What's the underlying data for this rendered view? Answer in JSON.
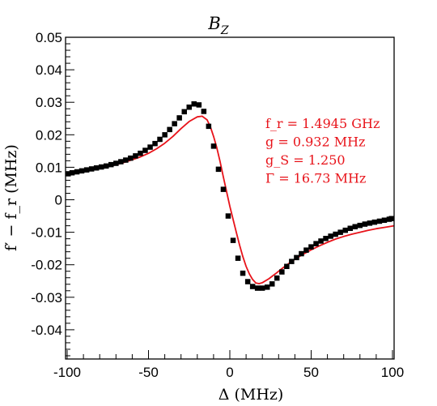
{
  "chart_data": {
    "type": "scatter",
    "title": "B_Z",
    "title_main": "B",
    "title_sub": "Z",
    "xlabel": "Δ (MHz)",
    "ylabel": "f′ − f_r (MHz)",
    "xlim": [
      -101,
      101
    ],
    "ylim": [
      -0.049,
      0.05
    ],
    "x_ticks": [
      -100,
      -50,
      0,
      50,
      100
    ],
    "x_tick_labels": [
      "-100",
      "-50",
      "0",
      "50",
      "100"
    ],
    "y_ticks": [
      0.05,
      0.04,
      0.03,
      0.02,
      0.01,
      0,
      -0.01,
      -0.02,
      -0.03,
      -0.04
    ],
    "y_tick_labels": [
      "0.05",
      "0.04",
      "0.03",
      "0.02",
      "0.01",
      "0",
      "-0.01",
      "-0.02",
      "-0.03",
      "-0.04"
    ],
    "grid": false,
    "colors": {
      "data": "#000000",
      "fit": "#e8131a"
    },
    "annotations": [
      "f_r = 1.4945 GHz",
      "g = 0.932 MHz",
      "g_S = 1.250",
      "Γ = 16.73 MHz"
    ],
    "series": [
      {
        "marker": "square",
        "x": [
          -100,
          -97,
          -94,
          -91,
          -88,
          -85,
          -82,
          -79,
          -76,
          -73,
          -70,
          -67,
          -64,
          -61,
          -58,
          -55,
          -52,
          -49,
          -46,
          -43,
          -40,
          -37,
          -34,
          -31,
          -28,
          -25,
          -22,
          -19,
          -16,
          -13,
          -10,
          -7,
          -4,
          -1,
          2,
          5,
          8,
          11,
          14,
          17,
          20,
          23,
          26,
          29,
          32,
          35,
          38,
          41,
          44,
          47,
          50,
          53,
          56,
          59,
          62,
          65,
          68,
          71,
          74,
          77,
          80,
          83,
          86,
          89,
          92,
          95,
          98,
          101
        ],
        "y": [
          0.008,
          0.0083,
          0.0086,
          0.0089,
          0.0092,
          0.0095,
          0.0098,
          0.0101,
          0.0104,
          0.0108,
          0.0112,
          0.0117,
          0.0122,
          0.0128,
          0.0135,
          0.0143,
          0.0152,
          0.0162,
          0.0173,
          0.0186,
          0.02,
          0.0216,
          0.0234,
          0.0252,
          0.0271,
          0.0285,
          0.0295,
          0.0292,
          0.0272,
          0.0226,
          0.0165,
          0.0094,
          0.0032,
          -0.005,
          -0.0125,
          -0.018,
          -0.0226,
          -0.0252,
          -0.0267,
          -0.0272,
          -0.0272,
          -0.0269,
          -0.0259,
          -0.0241,
          -0.0222,
          -0.0205,
          -0.019,
          -0.0178,
          -0.0166,
          -0.0155,
          -0.0145,
          -0.0135,
          -0.0127,
          -0.0119,
          -0.0112,
          -0.0106,
          -0.01,
          -0.0094,
          -0.0088,
          -0.0083,
          -0.0079,
          -0.0075,
          -0.0072,
          -0.0069,
          -0.0066,
          -0.0063,
          -0.006,
          -0.0058
        ]
      },
      {
        "type": "line",
        "x": [
          -101,
          -95,
          -90,
          -85,
          -80,
          -75,
          -70,
          -65,
          -60,
          -55,
          -50,
          -45,
          -40,
          -35,
          -30,
          -25,
          -20,
          -17,
          -14,
          -12,
          -10,
          -8,
          -6,
          -4,
          -2,
          0,
          2,
          4,
          6,
          8,
          10,
          12,
          14,
          16,
          18,
          20,
          24,
          28,
          32,
          36,
          40,
          45,
          50,
          55,
          60,
          65,
          70,
          75,
          80,
          85,
          90,
          95,
          101
        ],
        "y": [
          0.008,
          0.0084,
          0.0088,
          0.0092,
          0.0097,
          0.0102,
          0.0108,
          0.0115,
          0.0123,
          0.0132,
          0.0143,
          0.0157,
          0.0174,
          0.0195,
          0.0219,
          0.0241,
          0.0255,
          0.0257,
          0.0246,
          0.0225,
          0.0195,
          0.016,
          0.0118,
          0.007,
          0.0025,
          -0.002,
          -0.006,
          -0.01,
          -0.014,
          -0.0175,
          -0.0205,
          -0.0228,
          -0.0245,
          -0.0256,
          -0.0258,
          -0.0255,
          -0.0243,
          -0.0228,
          -0.0212,
          -0.0197,
          -0.0183,
          -0.0168,
          -0.0154,
          -0.0142,
          -0.0131,
          -0.0121,
          -0.0113,
          -0.0106,
          -0.01,
          -0.0094,
          -0.0089,
          -0.0085,
          -0.008
        ]
      }
    ]
  }
}
